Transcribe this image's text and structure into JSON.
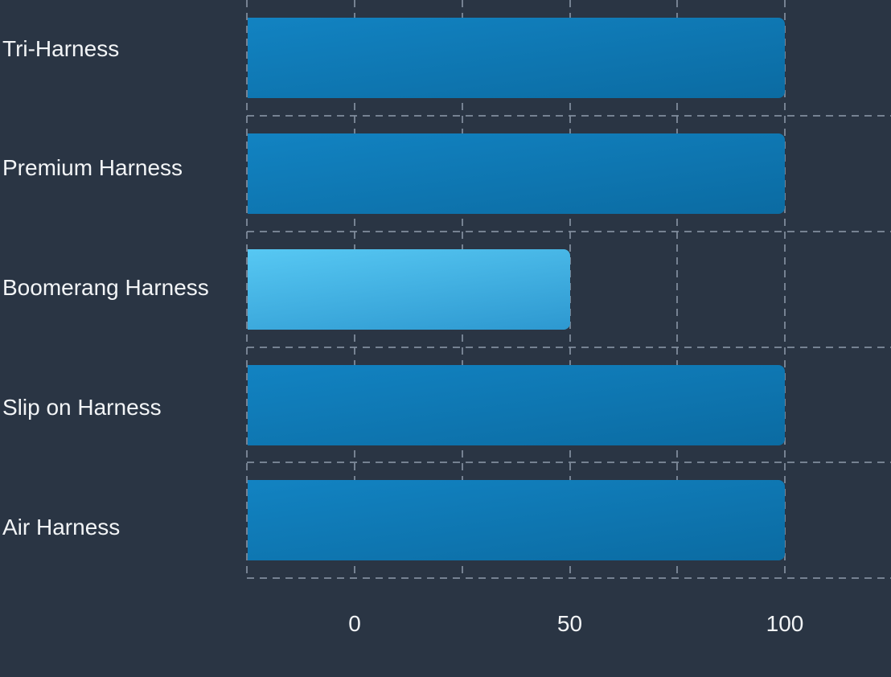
{
  "chart_data": {
    "type": "bar",
    "orientation": "horizontal",
    "title": "",
    "xlabel": "",
    "ylabel": "",
    "categories": [
      "Tri-Harness",
      "Premium Harness",
      "Boomerang Harness",
      "Slip on Harness",
      "Air Harness"
    ],
    "series": [
      {
        "name": "harness-values",
        "values": [
          100,
          100,
          50,
          100,
          100
        ]
      }
    ],
    "highlighted_category": "Boomerang Harness",
    "highlighted_index": 2,
    "x_ticks": [
      0,
      50,
      100
    ],
    "x_tick_labels": [
      "0",
      "50",
      "100"
    ],
    "x_range": [
      -25,
      100
    ],
    "grid": "dashed",
    "gridline_step": 25,
    "legend": "none",
    "colors": {
      "background": "#2a3544",
      "gridline": "#8390a0",
      "label_text": "#f2f4f6",
      "bar_gradient_top": "#1283c2",
      "bar_gradient_bottom": "#0b6ba2",
      "highlight_gradient_top": "#57c8f3",
      "highlight_gradient_bottom": "#2d98d0"
    }
  }
}
